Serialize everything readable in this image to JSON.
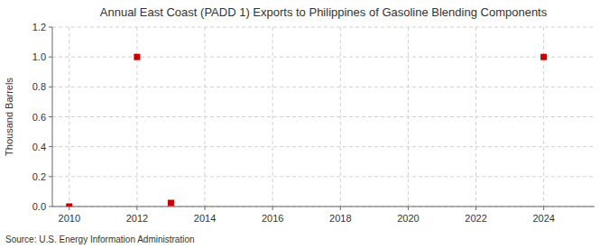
{
  "chart_data": {
    "type": "scatter",
    "title": "Annual East Coast (PADD 1) Exports to Philippines of Gasoline Blending Components",
    "y_label": "Thousand Barrels",
    "source": "Source: U.S. Energy Information Administration",
    "x": [
      2010,
      2012,
      2013,
      2024
    ],
    "values": [
      0.0,
      1.0,
      0.024,
      1.0
    ],
    "color": "#cc0000",
    "marker": "square",
    "xlim": [
      2009.5,
      2025.5
    ],
    "ylim": [
      0.0,
      1.2
    ],
    "xticks": [
      2010,
      2012,
      2014,
      2016,
      2018,
      2020,
      2022,
      2024
    ],
    "yticks": [
      {
        "value": 0.0,
        "label": "0.0"
      },
      0.2,
      0.4,
      0.6,
      0.8,
      {
        "value": 1.0,
        "label": "1.0"
      },
      1.2
    ],
    "grid": true
  }
}
